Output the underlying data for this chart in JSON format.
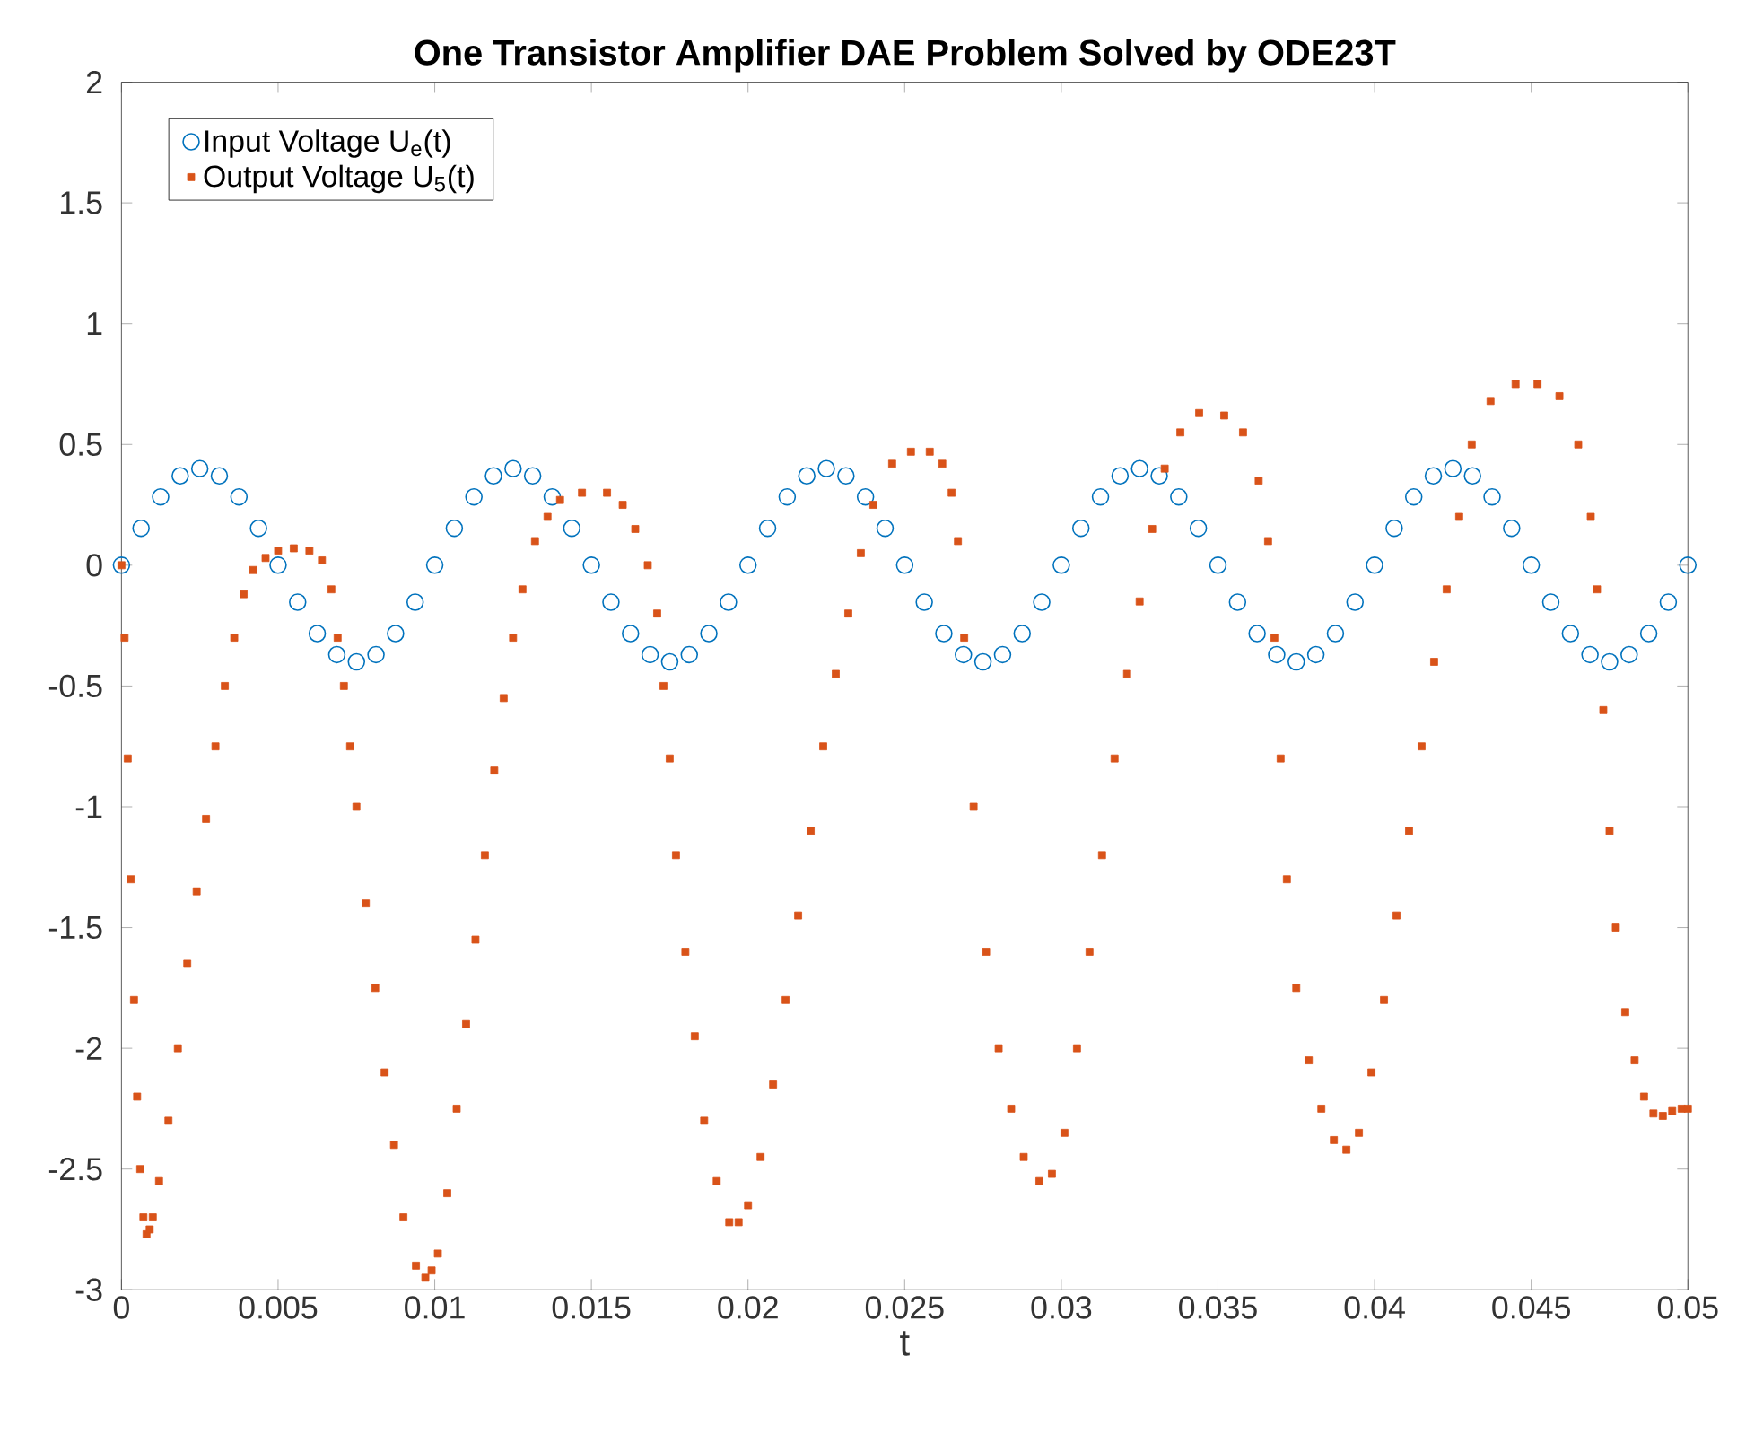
{
  "chart_data": {
    "type": "scatter",
    "title": "One Transistor Amplifier DAE Problem Solved by ODE23T",
    "xlabel": "t",
    "xlim": [
      0,
      0.05
    ],
    "ylim": [
      -3,
      2
    ],
    "xticks": [
      0,
      0.005,
      0.01,
      0.015,
      0.02,
      0.025,
      0.03,
      0.035,
      0.04,
      0.045,
      0.05
    ],
    "yticks": [
      -3,
      -2.5,
      -2,
      -1.5,
      -1,
      -0.5,
      0,
      0.5,
      1,
      1.5,
      2
    ],
    "legend": "top left",
    "grid": false,
    "series": [
      {
        "name": "Input Voltage U$_{e}$(t)",
        "color": "#0072bd",
        "marker": "circle",
        "x": [
          0,
          0.000625,
          0.00125,
          0.001875,
          0.0025,
          0.003125,
          0.00375,
          0.004375,
          0.005,
          0.005625,
          0.00625,
          0.006875,
          0.0075,
          0.008125,
          0.00875,
          0.009375,
          0.01,
          0.010625,
          0.01125,
          0.011875,
          0.0125,
          0.013125,
          0.01375,
          0.014375,
          0.015,
          0.015625,
          0.01625,
          0.016875,
          0.0175,
          0.018125,
          0.01875,
          0.019375,
          0.02,
          0.020625,
          0.02125,
          0.021875,
          0.0225,
          0.023125,
          0.02375,
          0.024375,
          0.025,
          0.025625,
          0.02625,
          0.026875,
          0.0275,
          0.028125,
          0.02875,
          0.029375,
          0.03,
          0.030625,
          0.03125,
          0.031875,
          0.0325,
          0.033125,
          0.03375,
          0.034375,
          0.035,
          0.035625,
          0.03625,
          0.036875,
          0.0375,
          0.038125,
          0.03875,
          0.039375,
          0.04,
          0.040625,
          0.04125,
          0.041875,
          0.0425,
          0.043125,
          0.04375,
          0.044375,
          0.045,
          0.045625,
          0.04625,
          0.046875,
          0.0475,
          0.048125,
          0.04875,
          0.049375,
          0.05
        ],
        "values": [
          0,
          0.153,
          0.283,
          0.37,
          0.4,
          0.37,
          0.283,
          0.153,
          0,
          -0.153,
          -0.283,
          -0.37,
          -0.4,
          -0.37,
          -0.283,
          -0.153,
          0,
          0.153,
          0.283,
          0.37,
          0.4,
          0.37,
          0.283,
          0.153,
          0,
          -0.153,
          -0.283,
          -0.37,
          -0.4,
          -0.37,
          -0.283,
          -0.153,
          0,
          0.153,
          0.283,
          0.37,
          0.4,
          0.37,
          0.283,
          0.153,
          0,
          -0.153,
          -0.283,
          -0.37,
          -0.4,
          -0.37,
          -0.283,
          -0.153,
          0,
          0.153,
          0.283,
          0.37,
          0.4,
          0.37,
          0.283,
          0.153,
          0,
          -0.153,
          -0.283,
          -0.37,
          -0.4,
          -0.37,
          -0.283,
          -0.153,
          0,
          0.153,
          0.283,
          0.37,
          0.4,
          0.37,
          0.283,
          0.153,
          0,
          -0.153,
          -0.283,
          -0.37,
          -0.4,
          -0.37,
          -0.283,
          -0.153,
          0
        ]
      },
      {
        "name": "Output Voltage U$_{5}$(t)",
        "color": "#d95319",
        "marker": "square",
        "x": [
          0,
          0.0001,
          0.0002,
          0.0003,
          0.0004,
          0.0005,
          0.0006,
          0.0007,
          0.0008,
          0.0009,
          0.001,
          0.0012,
          0.0015,
          0.0018,
          0.0021,
          0.0024,
          0.0027,
          0.003,
          0.0033,
          0.0036,
          0.0039,
          0.0042,
          0.0046,
          0.005,
          0.0055,
          0.006,
          0.0064,
          0.0067,
          0.0069,
          0.0071,
          0.0073,
          0.0075,
          0.0078,
          0.0081,
          0.0084,
          0.0087,
          0.009,
          0.0094,
          0.0097,
          0.0099,
          0.0101,
          0.0104,
          0.0107,
          0.011,
          0.0113,
          0.0116,
          0.0119,
          0.0122,
          0.0125,
          0.0128,
          0.0132,
          0.0136,
          0.014,
          0.0147,
          0.0155,
          0.016,
          0.0164,
          0.0168,
          0.0171,
          0.0173,
          0.0175,
          0.0177,
          0.018,
          0.0183,
          0.0186,
          0.019,
          0.0194,
          0.0197,
          0.02,
          0.0204,
          0.0208,
          0.0212,
          0.0216,
          0.022,
          0.0224,
          0.0228,
          0.0232,
          0.0236,
          0.024,
          0.0246,
          0.0252,
          0.0258,
          0.0262,
          0.0265,
          0.0267,
          0.0269,
          0.0272,
          0.0276,
          0.028,
          0.0284,
          0.0288,
          0.0293,
          0.0297,
          0.0301,
          0.0305,
          0.0309,
          0.0313,
          0.0317,
          0.0321,
          0.0325,
          0.0329,
          0.0333,
          0.0338,
          0.0344,
          0.0352,
          0.0358,
          0.0363,
          0.0366,
          0.0368,
          0.037,
          0.0372,
          0.0375,
          0.0379,
          0.0383,
          0.0387,
          0.0391,
          0.0395,
          0.0399,
          0.0403,
          0.0407,
          0.0411,
          0.0415,
          0.0419,
          0.0423,
          0.0427,
          0.0431,
          0.0437,
          0.0445,
          0.0452,
          0.0459,
          0.0465,
          0.0469,
          0.0471,
          0.0473,
          0.0475,
          0.0477,
          0.048,
          0.0483,
          0.0486,
          0.0489,
          0.0492,
          0.0495,
          0.0498,
          0.05
        ],
        "values": [
          0,
          -0.3,
          -0.8,
          -1.3,
          -1.8,
          -2.2,
          -2.5,
          -2.7,
          -2.77,
          -2.75,
          -2.7,
          -2.55,
          -2.3,
          -2.0,
          -1.65,
          -1.35,
          -1.05,
          -0.75,
          -0.5,
          -0.3,
          -0.12,
          -0.02,
          0.03,
          0.06,
          0.07,
          0.06,
          0.02,
          -0.1,
          -0.3,
          -0.5,
          -0.75,
          -1.0,
          -1.4,
          -1.75,
          -2.1,
          -2.4,
          -2.7,
          -2.9,
          -2.95,
          -2.92,
          -2.85,
          -2.6,
          -2.25,
          -1.9,
          -1.55,
          -1.2,
          -0.85,
          -0.55,
          -0.3,
          -0.1,
          0.1,
          0.2,
          0.27,
          0.3,
          0.3,
          0.25,
          0.15,
          0.0,
          -0.2,
          -0.5,
          -0.8,
          -1.2,
          -1.6,
          -1.95,
          -2.3,
          -2.55,
          -2.72,
          -2.72,
          -2.65,
          -2.45,
          -2.15,
          -1.8,
          -1.45,
          -1.1,
          -0.75,
          -0.45,
          -0.2,
          0.05,
          0.25,
          0.42,
          0.47,
          0.47,
          0.42,
          0.3,
          0.1,
          -0.3,
          -1.0,
          -1.6,
          -2.0,
          -2.25,
          -2.45,
          -2.55,
          -2.52,
          -2.35,
          -2.0,
          -1.6,
          -1.2,
          -0.8,
          -0.45,
          -0.15,
          0.15,
          0.4,
          0.55,
          0.63,
          0.62,
          0.55,
          0.35,
          0.1,
          -0.3,
          -0.8,
          -1.3,
          -1.75,
          -2.05,
          -2.25,
          -2.38,
          -2.42,
          -2.35,
          -2.1,
          -1.8,
          -1.45,
          -1.1,
          -0.75,
          -0.4,
          -0.1,
          0.2,
          0.5,
          0.68,
          0.75,
          0.75,
          0.7,
          0.5,
          0.2,
          -0.1,
          -0.6,
          -1.1,
          -1.5,
          -1.85,
          -2.05,
          -2.2,
          -2.27,
          -2.28,
          -2.26,
          -2.25,
          -2.25
        ]
      }
    ]
  }
}
